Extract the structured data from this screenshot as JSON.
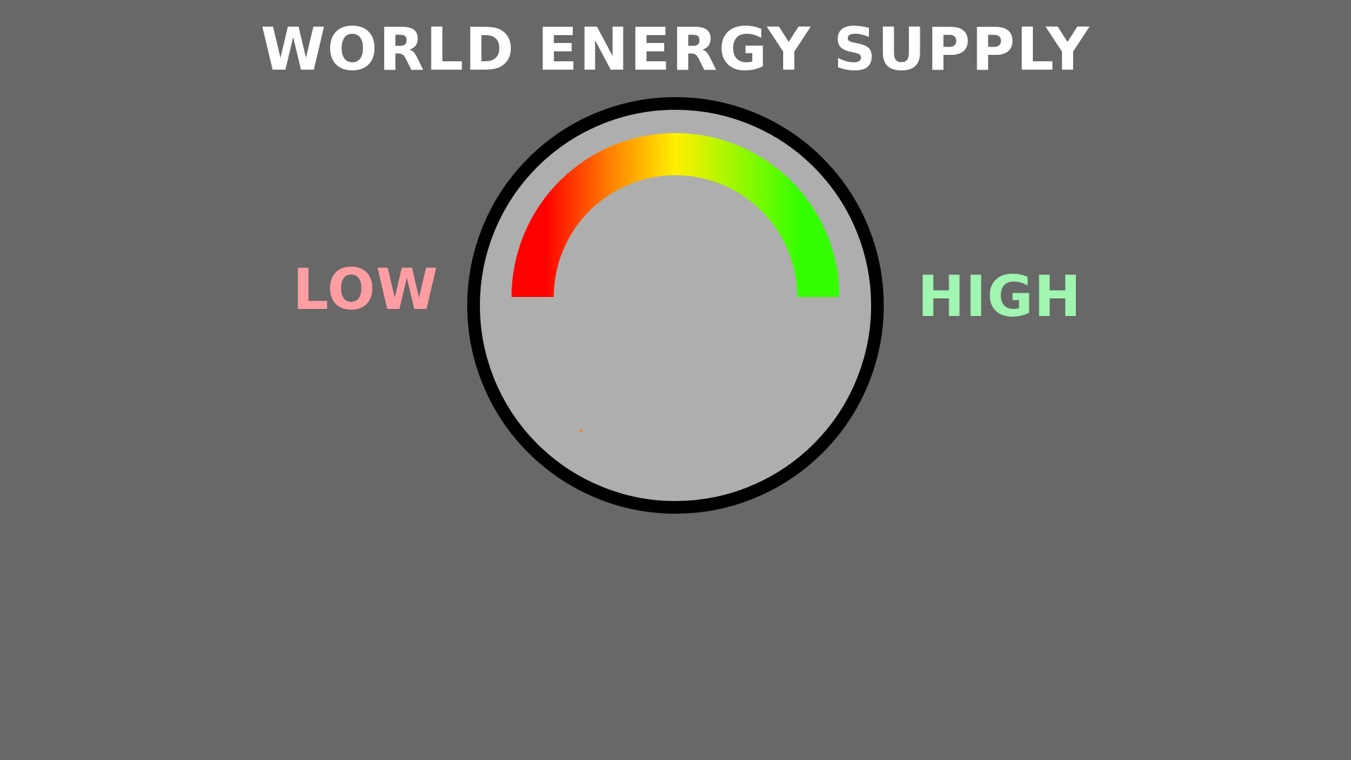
{
  "header": {
    "title": "WORLD ENERGY SUPPLY"
  },
  "gauge": {
    "low_label": "LOW",
    "high_label": "HIGH",
    "level": 0,
    "colors": {
      "low": "#ff0000",
      "mid_low": "#ff8000",
      "mid": "#fff000",
      "high": "#33ff00",
      "low_label": "#ff9ea2",
      "high_label": "#a0f5b0",
      "dial_face": "#aeaeae",
      "dial_rim": "#000000",
      "background": "#686868"
    }
  }
}
